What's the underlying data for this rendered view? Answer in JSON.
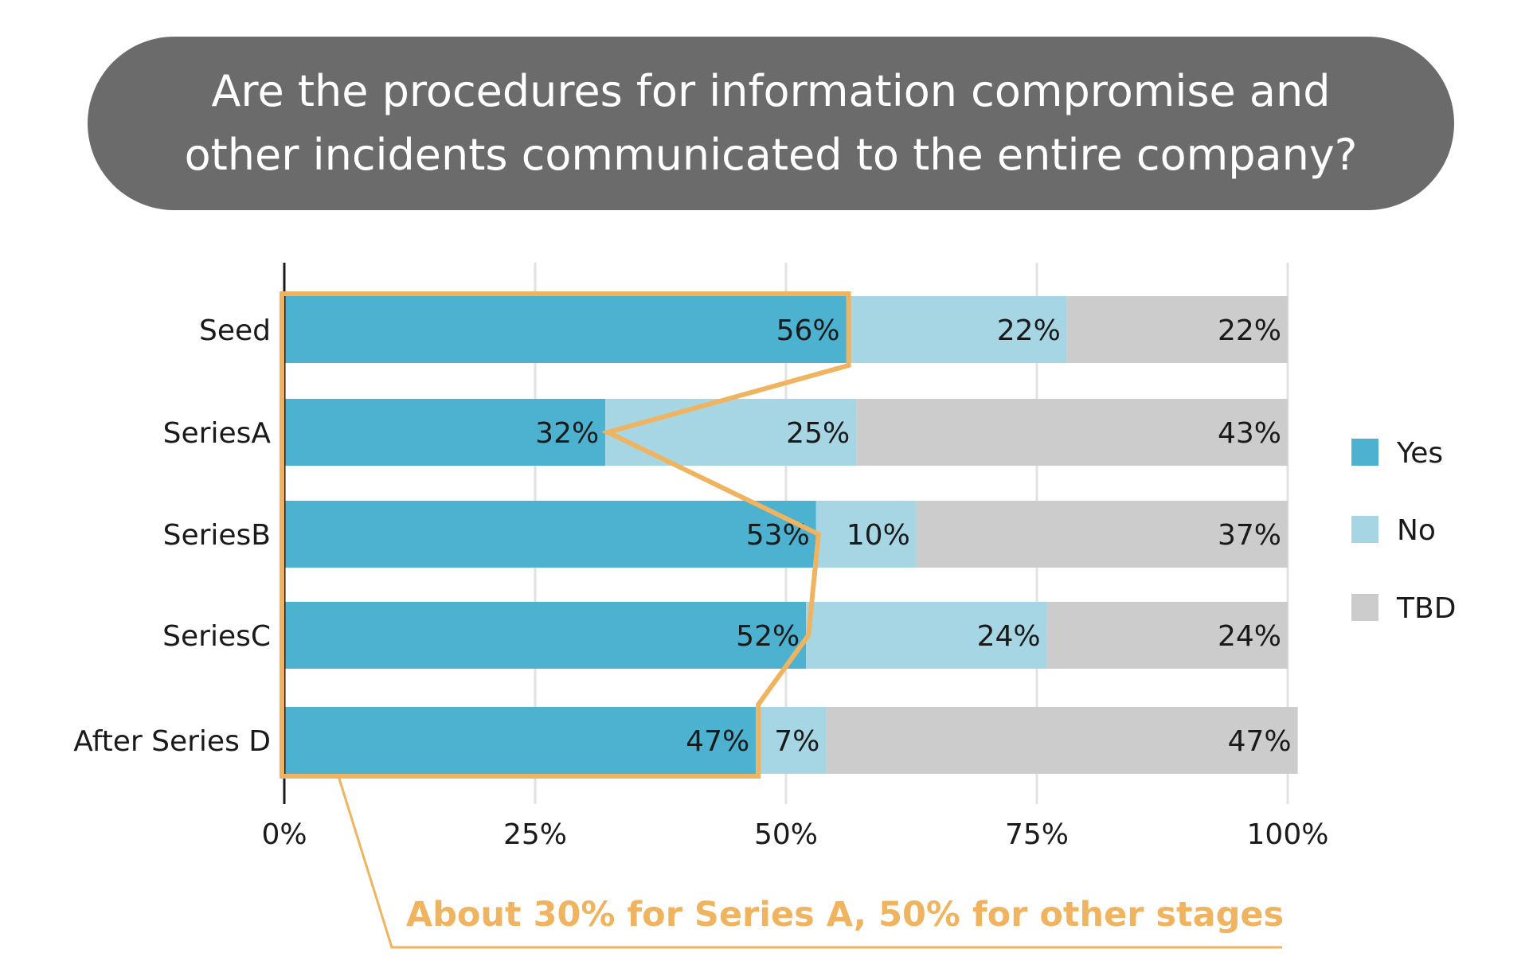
{
  "chart_data": {
    "type": "bar",
    "orientation": "horizontal",
    "stacked": true,
    "title": "Are the procedures for information compromise and other incidents communicated to the entire company?",
    "title_lines": [
      "Are the procedures for information compromise and",
      "other incidents communicated to the entire company?"
    ],
    "categories": [
      "Seed",
      "SeriesA",
      "SeriesB",
      "SeriesC",
      "After Series D"
    ],
    "series": [
      {
        "name": "Yes",
        "color": "#4db2d0",
        "values": [
          56,
          32,
          53,
          52,
          47
        ]
      },
      {
        "name": "No",
        "color": "#a6d6e3",
        "values": [
          22,
          25,
          10,
          24,
          7
        ]
      },
      {
        "name": "TBD",
        "color": "#cccccc",
        "values": [
          22,
          43,
          37,
          24,
          47
        ]
      }
    ],
    "xlim": [
      0,
      100
    ],
    "xticks": [
      0,
      25,
      50,
      75,
      100
    ],
    "xtick_labels": [
      "0%",
      "25%",
      "50%",
      "75%",
      "100%"
    ],
    "value_suffix": "%",
    "grid": true,
    "legend_position": "right",
    "annotation": {
      "text": "About 30% for Series A, 50% for other stages",
      "color": "#f0b35f"
    }
  }
}
